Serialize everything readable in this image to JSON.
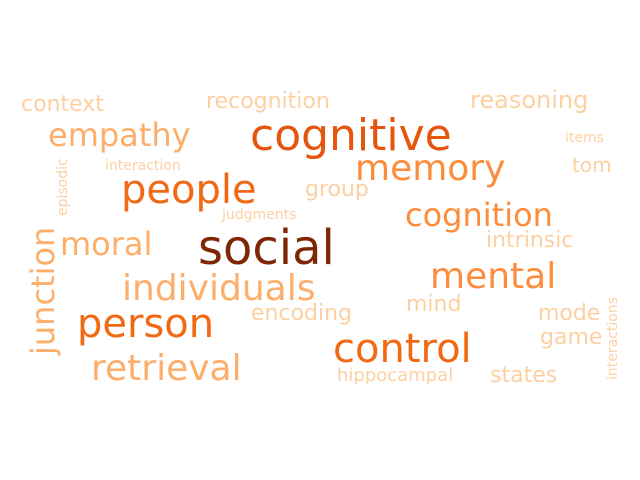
{
  "words": [
    {
      "text": "social",
      "color": "#7f2704"
    },
    {
      "text": "cognitive",
      "color": "#e6550d"
    },
    {
      "text": "people",
      "color": "#f16913"
    },
    {
      "text": "control",
      "color": "#f16913"
    },
    {
      "text": "person",
      "color": "#f16913"
    },
    {
      "text": "memory",
      "color": "#fd8d3c"
    },
    {
      "text": "mental",
      "color": "#fd8d3c"
    },
    {
      "text": "individuals",
      "color": "#fdae6b"
    },
    {
      "text": "retrieval",
      "color": "#fdae6b"
    },
    {
      "text": "cognition",
      "color": "#fd8d3c"
    },
    {
      "text": "empathy",
      "color": "#fdae6b"
    },
    {
      "text": "junction",
      "color": "#fdae6b"
    },
    {
      "text": "moral",
      "color": "#fdae6b"
    },
    {
      "text": "reasoning",
      "color": "#fdd0a2"
    },
    {
      "text": "recognition",
      "color": "#fdd0a2"
    },
    {
      "text": "context",
      "color": "#fdd0a2"
    },
    {
      "text": "group",
      "color": "#fdd0a2"
    },
    {
      "text": "intrinsic",
      "color": "#fdd0a2"
    },
    {
      "text": "encoding",
      "color": "#fdd0a2"
    },
    {
      "text": "mind",
      "color": "#fdd0a2"
    },
    {
      "text": "mode",
      "color": "#fdd0a2"
    },
    {
      "text": "game",
      "color": "#fdd0a2"
    },
    {
      "text": "states",
      "color": "#fdd0a2"
    },
    {
      "text": "hippocampal",
      "color": "#fdd0a2"
    },
    {
      "text": "tom",
      "color": "#fdd0a2"
    },
    {
      "text": "items",
      "color": "#fdd0a2"
    },
    {
      "text": "interaction",
      "color": "#fdd0a2"
    },
    {
      "text": "judgments",
      "color": "#fdd0a2"
    },
    {
      "text": "episodic",
      "color": "#fdd0a2"
    },
    {
      "text": "interactions",
      "color": "#fdd0a2"
    }
  ]
}
